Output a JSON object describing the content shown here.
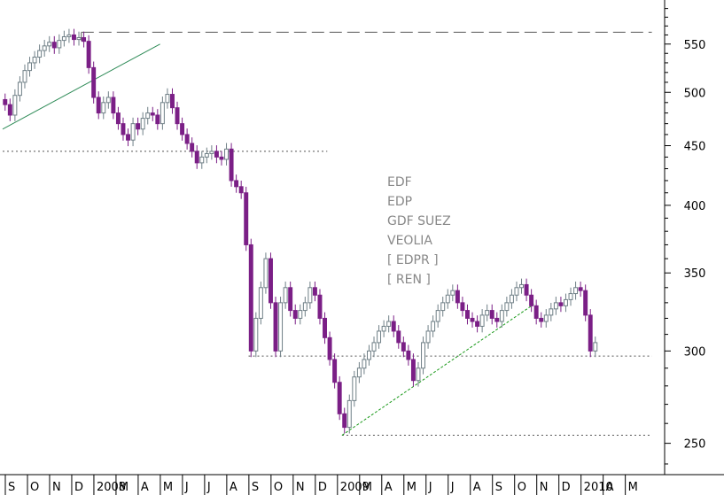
{
  "chart_data": {
    "type": "candlestick",
    "title": "",
    "xlabel": "",
    "ylabel": "",
    "yscale": "log",
    "ylim": [
      235,
      600
    ],
    "y_ticks": [
      250,
      300,
      350,
      400,
      450,
      500,
      550
    ],
    "x_months": [
      "S",
      "O",
      "N",
      "D",
      "2008",
      "M",
      "A",
      "M",
      "J",
      "J",
      "A",
      "S",
      "O",
      "N",
      "D",
      "2009",
      "M",
      "A",
      "M",
      "J",
      "J",
      "A",
      "S",
      "O",
      "N",
      "D",
      "2010",
      "A",
      "M"
    ],
    "legend": [
      "EDF",
      "EDP",
      "GDF SUEZ",
      "VEOLIA",
      "[ EDPR ]",
      "[ REN ]"
    ],
    "colors": {
      "up": "#ffffff",
      "up_outline": "#6f7f86",
      "down": "#7b1f86",
      "support": "#333333",
      "trend_up": "#2e8b57",
      "trend_dashed": "#1a9a1a"
    },
    "reference_levels": [
      {
        "value": 563,
        "from_week": 16,
        "to_week": 132,
        "style": "dashed"
      },
      {
        "value": 445,
        "from_week": 0,
        "to_week": 66,
        "style": "dotted"
      },
      {
        "value": 297,
        "from_week": 50,
        "to_week": 132,
        "style": "dotted"
      },
      {
        "value": 254,
        "from_week": 69,
        "to_week": 132,
        "style": "dotted"
      }
    ],
    "trendlines": [
      {
        "from": [
          0,
          465
        ],
        "to": [
          32,
          550
        ],
        "style": "solid"
      },
      {
        "from": [
          69,
          254
        ],
        "to": [
          108,
          329
        ],
        "style": "dashed"
      }
    ],
    "weekly_close": [
      488,
      478,
      497,
      510,
      522,
      530,
      536,
      543,
      548,
      552,
      546,
      554,
      558,
      560,
      555,
      557,
      553,
      525,
      495,
      480,
      490,
      495,
      480,
      470,
      460,
      455,
      470,
      465,
      475,
      480,
      478,
      470,
      490,
      498,
      485,
      470,
      460,
      452,
      445,
      435,
      440,
      443,
      445,
      440,
      438,
      447,
      420,
      415,
      410,
      370,
      300,
      320,
      340,
      360,
      330,
      300,
      330,
      340,
      325,
      320,
      325,
      330,
      340,
      335,
      320,
      308,
      295,
      282,
      265,
      258,
      272,
      285,
      290,
      295,
      300,
      305,
      312,
      315,
      318,
      312,
      305,
      300,
      295,
      283,
      290,
      305,
      312,
      318,
      325,
      330,
      335,
      338,
      330,
      325,
      320,
      318,
      315,
      322,
      325,
      320,
      318,
      325,
      330,
      335,
      340,
      342,
      335,
      328,
      320,
      318,
      322,
      326,
      330,
      328,
      332,
      336,
      340,
      338,
      322,
      300,
      305
    ]
  }
}
